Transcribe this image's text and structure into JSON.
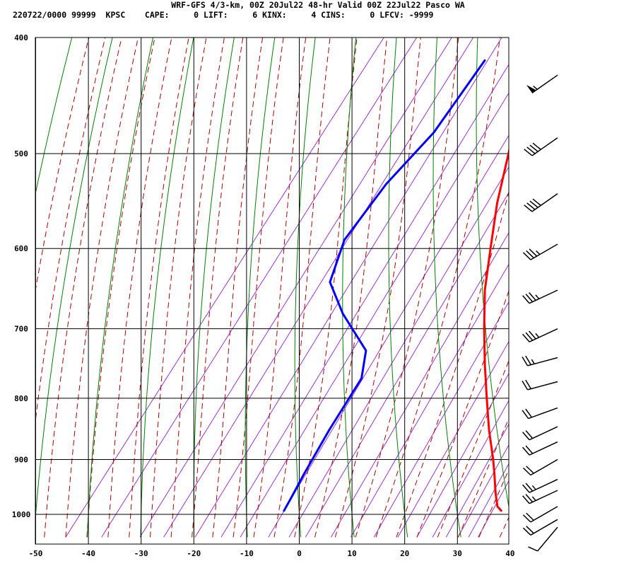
{
  "header": {
    "line1": "WRF-GFS 4/3-km, 00Z 20Jul22 48-hr Valid 00Z 22Jul22 Pasco WA",
    "line2": "220722/0000 99999  KPSC    CAPE:     0 LIFT:     6 KINX:     4 CINS:     0 LFCV: -9999"
  },
  "chart_data": {
    "type": "line",
    "subtype": "skew-t log-p sounding",
    "title": "WRF-GFS 4/3-km, 00Z 20Jul22 48-hr Valid 00Z 22Jul22 Pasco WA",
    "xlabel": "",
    "ylabel": "",
    "x_ticks": [
      -50,
      -40,
      -30,
      -20,
      -10,
      0,
      10,
      20,
      30,
      40
    ],
    "y_ticks": [
      400,
      500,
      600,
      700,
      800,
      900,
      1000
    ],
    "xlim": [
      -50,
      40
    ],
    "ylim_pressure": [
      1040,
      400
    ],
    "y_scale": "log",
    "grid": true,
    "series": [
      {
        "name": "",
        "color": "#ff0000",
        "points": [
          {
            "p": 993,
            "t": 37.8
          },
          {
            "p": 985,
            "t": 36.5
          },
          {
            "p": 960,
            "t": 34.3
          },
          {
            "p": 925,
            "t": 31.4
          },
          {
            "p": 900,
            "t": 29.2
          },
          {
            "p": 850,
            "t": 24.3
          },
          {
            "p": 800,
            "t": 19.5
          },
          {
            "p": 750,
            "t": 14.5
          },
          {
            "p": 700,
            "t": 9.4
          },
          {
            "p": 650,
            "t": 4.2
          },
          {
            "p": 600,
            "t": -0.5
          },
          {
            "p": 550,
            "t": -5.5
          },
          {
            "p": 500,
            "t": -10.2
          },
          {
            "p": 470,
            "t": -13.3
          },
          {
            "p": 418,
            "t": -20.0
          }
        ]
      },
      {
        "name": "",
        "color": "#0000ff",
        "points": [
          {
            "p": 993,
            "t": -3.4
          },
          {
            "p": 970,
            "t": -3.8
          },
          {
            "p": 925,
            "t": -4.7
          },
          {
            "p": 850,
            "t": -6.0
          },
          {
            "p": 770,
            "t": -7.0
          },
          {
            "p": 730,
            "t": -10.0
          },
          {
            "p": 680,
            "t": -19.5
          },
          {
            "p": 640,
            "t": -26.3
          },
          {
            "p": 590,
            "t": -29.4
          },
          {
            "p": 530,
            "t": -29.2
          },
          {
            "p": 480,
            "t": -27.3
          },
          {
            "p": 418,
            "t": -27.6
          }
        ]
      }
    ],
    "winds": [
      {
        "p": 1025,
        "spd_kt": 10,
        "dir": 220
      },
      {
        "p": 1010,
        "spd_kt": 20,
        "dir": 240
      },
      {
        "p": 985,
        "spd_kt": 20,
        "dir": 240
      },
      {
        "p": 955,
        "spd_kt": 25,
        "dir": 245
      },
      {
        "p": 935,
        "spd_kt": 25,
        "dir": 245
      },
      {
        "p": 900,
        "spd_kt": 20,
        "dir": 240
      },
      {
        "p": 870,
        "spd_kt": 20,
        "dir": 245
      },
      {
        "p": 845,
        "spd_kt": 20,
        "dir": 245
      },
      {
        "p": 815,
        "spd_kt": 20,
        "dir": 250
      },
      {
        "p": 775,
        "spd_kt": 20,
        "dir": 255
      },
      {
        "p": 740,
        "spd_kt": 25,
        "dir": 255
      },
      {
        "p": 700,
        "spd_kt": 35,
        "dir": 245
      },
      {
        "p": 650,
        "spd_kt": 35,
        "dir": 245
      },
      {
        "p": 595,
        "spd_kt": 35,
        "dir": 240
      },
      {
        "p": 540,
        "spd_kt": 40,
        "dir": 235
      },
      {
        "p": 485,
        "spd_kt": 40,
        "dir": 235
      },
      {
        "p": 430,
        "spd_kt": 55,
        "dir": 235
      }
    ],
    "colors": {
      "isotherm_grid": "#000000",
      "dry_adiabat": "#008000",
      "moist_adiabat": "#aa0000",
      "mixing_ratio": "#9933cc",
      "temperature": "#ff0000",
      "dewpoint": "#0000ff",
      "wind_barb": "#000000"
    }
  }
}
